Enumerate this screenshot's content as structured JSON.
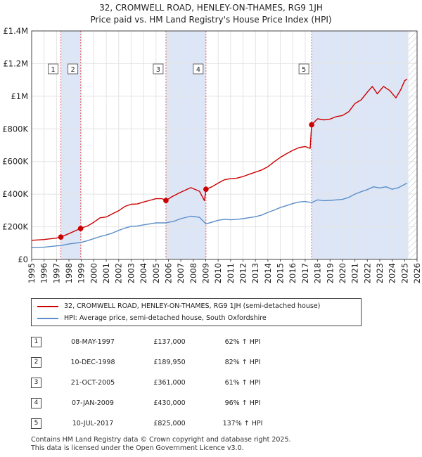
{
  "title": "32, CROMWELL ROAD, HENLEY-ON-THAMES, RG9 1JH",
  "subtitle": "Price paid vs. HM Land Registry's House Price Index (HPI)",
  "colors": {
    "property": "#cc0000",
    "hpi": "#5b8ec9",
    "band": "#dde6f7",
    "marker_line": "#e06666"
  },
  "chart_data": {
    "type": "line",
    "xlim": [
      1995,
      2026
    ],
    "ylim": [
      0,
      1400000
    ],
    "x_ticks": [
      "1995",
      "1996",
      "1997",
      "1998",
      "1999",
      "2000",
      "2001",
      "2002",
      "2003",
      "2004",
      "2005",
      "2006",
      "2007",
      "2008",
      "2009",
      "2010",
      "2011",
      "2012",
      "2013",
      "2014",
      "2015",
      "2016",
      "2017",
      "2018",
      "2019",
      "2020",
      "2021",
      "2022",
      "2023",
      "2024",
      "2025",
      "2026"
    ],
    "y_ticks": [
      {
        "value": 0,
        "label": "£0"
      },
      {
        "value": 200000,
        "label": "£200K"
      },
      {
        "value": 400000,
        "label": "£400K"
      },
      {
        "value": 600000,
        "label": "£600K"
      },
      {
        "value": 800000,
        "label": "£800K"
      },
      {
        "value": 1000000,
        "label": "£1M"
      },
      {
        "value": 1200000,
        "label": "£1.2M"
      },
      {
        "value": 1400000,
        "label": "£1.4M"
      }
    ],
    "shaded_periods": [
      [
        1997.35,
        1998.94
      ],
      [
        2005.8,
        2009.02
      ],
      [
        2017.52,
        2025.3
      ]
    ],
    "forecast_start": 2025.3,
    "series": [
      {
        "name": "32, CROMWELL ROAD, HENLEY-ON-THAMES, RG9 1JH (semi-detached house)",
        "points": [
          [
            1995.0,
            117000
          ],
          [
            1996.0,
            122000
          ],
          [
            1997.0,
            131000
          ],
          [
            1997.35,
            137000
          ],
          [
            1998.0,
            158000
          ],
          [
            1998.94,
            189950
          ],
          [
            1999.5,
            205000
          ],
          [
            2000.0,
            228000
          ],
          [
            2000.5,
            255000
          ],
          [
            2001.0,
            260000
          ],
          [
            2001.5,
            280000
          ],
          [
            2002.0,
            298000
          ],
          [
            2002.5,
            325000
          ],
          [
            2003.0,
            338000
          ],
          [
            2003.5,
            340000
          ],
          [
            2004.0,
            352000
          ],
          [
            2004.5,
            362000
          ],
          [
            2005.0,
            372000
          ],
          [
            2005.5,
            372000
          ],
          [
            2005.8,
            361000
          ],
          [
            2006.3,
            385000
          ],
          [
            2007.0,
            412000
          ],
          [
            2007.8,
            440000
          ],
          [
            2008.5,
            418000
          ],
          [
            2008.9,
            360000
          ],
          [
            2009.02,
            430000
          ],
          [
            2009.5,
            445000
          ],
          [
            2010.0,
            468000
          ],
          [
            2010.5,
            488000
          ],
          [
            2011.0,
            495000
          ],
          [
            2011.5,
            498000
          ],
          [
            2012.0,
            508000
          ],
          [
            2012.5,
            522000
          ],
          [
            2013.0,
            535000
          ],
          [
            2013.5,
            548000
          ],
          [
            2014.0,
            568000
          ],
          [
            2014.5,
            598000
          ],
          [
            2015.0,
            625000
          ],
          [
            2015.5,
            648000
          ],
          [
            2016.0,
            668000
          ],
          [
            2016.5,
            685000
          ],
          [
            2017.0,
            692000
          ],
          [
            2017.4,
            680000
          ],
          [
            2017.52,
            825000
          ],
          [
            2018.0,
            862000
          ],
          [
            2018.5,
            855000
          ],
          [
            2019.0,
            860000
          ],
          [
            2019.5,
            875000
          ],
          [
            2020.0,
            882000
          ],
          [
            2020.5,
            905000
          ],
          [
            2021.0,
            955000
          ],
          [
            2021.5,
            978000
          ],
          [
            2022.0,
            1025000
          ],
          [
            2022.4,
            1060000
          ],
          [
            2022.8,
            1015000
          ],
          [
            2023.3,
            1060000
          ],
          [
            2023.8,
            1035000
          ],
          [
            2024.3,
            990000
          ],
          [
            2024.7,
            1042000
          ],
          [
            2025.0,
            1095000
          ],
          [
            2025.2,
            1105000
          ]
        ]
      },
      {
        "name": "HPI: Average price, semi-detached house, South Oxfordshire",
        "points": [
          [
            1995.0,
            72000
          ],
          [
            1996.0,
            75000
          ],
          [
            1997.0,
            83000
          ],
          [
            1997.35,
            85000
          ],
          [
            1998.0,
            95000
          ],
          [
            1998.94,
            104000
          ],
          [
            1999.5,
            115000
          ],
          [
            2000.0,
            128000
          ],
          [
            2000.5,
            140000
          ],
          [
            2001.0,
            150000
          ],
          [
            2001.5,
            162000
          ],
          [
            2002.0,
            178000
          ],
          [
            2002.5,
            192000
          ],
          [
            2003.0,
            203000
          ],
          [
            2003.5,
            205000
          ],
          [
            2004.0,
            212000
          ],
          [
            2004.5,
            218000
          ],
          [
            2005.0,
            224000
          ],
          [
            2005.8,
            224000
          ],
          [
            2006.5,
            235000
          ],
          [
            2007.0,
            250000
          ],
          [
            2007.8,
            265000
          ],
          [
            2008.5,
            258000
          ],
          [
            2009.02,
            218000
          ],
          [
            2009.5,
            228000
          ],
          [
            2010.0,
            240000
          ],
          [
            2010.5,
            246000
          ],
          [
            2011.0,
            243000
          ],
          [
            2011.5,
            245000
          ],
          [
            2012.0,
            250000
          ],
          [
            2012.5,
            256000
          ],
          [
            2013.0,
            262000
          ],
          [
            2013.5,
            272000
          ],
          [
            2014.0,
            288000
          ],
          [
            2014.5,
            302000
          ],
          [
            2015.0,
            318000
          ],
          [
            2015.5,
            330000
          ],
          [
            2016.0,
            342000
          ],
          [
            2016.5,
            352000
          ],
          [
            2017.0,
            355000
          ],
          [
            2017.52,
            348000
          ],
          [
            2018.0,
            365000
          ],
          [
            2018.5,
            360000
          ],
          [
            2019.0,
            362000
          ],
          [
            2019.5,
            365000
          ],
          [
            2020.0,
            368000
          ],
          [
            2020.5,
            380000
          ],
          [
            2021.0,
            400000
          ],
          [
            2021.5,
            415000
          ],
          [
            2022.0,
            428000
          ],
          [
            2022.5,
            445000
          ],
          [
            2023.0,
            438000
          ],
          [
            2023.5,
            445000
          ],
          [
            2024.0,
            430000
          ],
          [
            2024.5,
            440000
          ],
          [
            2025.0,
            460000
          ],
          [
            2025.2,
            468000
          ]
        ]
      }
    ],
    "sales": [
      {
        "num": "1",
        "x": 1997.35,
        "y": 137000
      },
      {
        "num": "2",
        "x": 1998.94,
        "y": 189950
      },
      {
        "num": "3",
        "x": 2005.8,
        "y": 361000
      },
      {
        "num": "4",
        "x": 2009.02,
        "y": 430000
      },
      {
        "num": "5",
        "x": 2017.52,
        "y": 825000
      }
    ]
  },
  "legend": [
    "32, CROMWELL ROAD, HENLEY-ON-THAMES, RG9 1JH (semi-detached house)",
    "HPI: Average price, semi-detached house, South Oxfordshire"
  ],
  "transactions": [
    {
      "num": "1",
      "date": "08-MAY-1997",
      "price": "£137,000",
      "change": "62% ↑ HPI"
    },
    {
      "num": "2",
      "date": "10-DEC-1998",
      "price": "£189,950",
      "change": "82% ↑ HPI"
    },
    {
      "num": "3",
      "date": "21-OCT-2005",
      "price": "£361,000",
      "change": "61% ↑ HPI"
    },
    {
      "num": "4",
      "date": "07-JAN-2009",
      "price": "£430,000",
      "change": "96% ↑ HPI"
    },
    {
      "num": "5",
      "date": "10-JUL-2017",
      "price": "£825,000",
      "change": "137% ↑ HPI"
    }
  ],
  "footer": [
    "Contains HM Land Registry data © Crown copyright and database right 2025.",
    "This data is licensed under the Open Government Licence v3.0."
  ]
}
